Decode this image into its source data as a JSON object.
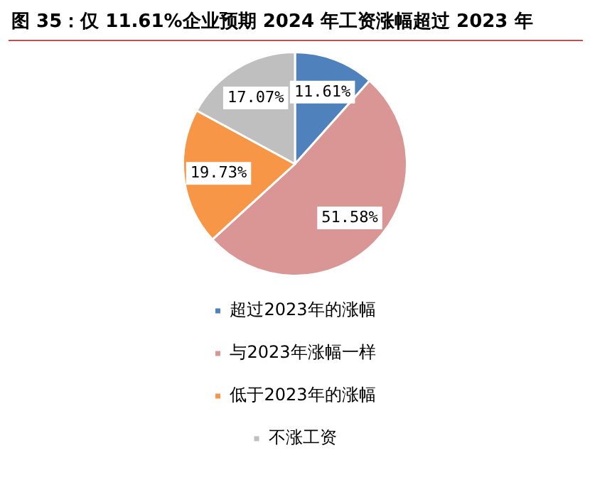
{
  "chart_data": {
    "type": "pie",
    "title": "图 35：仅 11.61%企业预期 2024 年工资涨幅超过 2023 年",
    "categories": [
      "超过2023年的涨幅",
      "与2023年涨幅一样",
      "低于2023年的涨幅",
      "不涨工资"
    ],
    "values": [
      11.61,
      51.58,
      19.73,
      17.07
    ],
    "colors": [
      "#4f81bd",
      "#d99694",
      "#f79646",
      "#bfbfbf"
    ],
    "value_labels": [
      "11.61%",
      "51.58%",
      "19.73%",
      "17.07%"
    ],
    "legend": "bottom"
  }
}
